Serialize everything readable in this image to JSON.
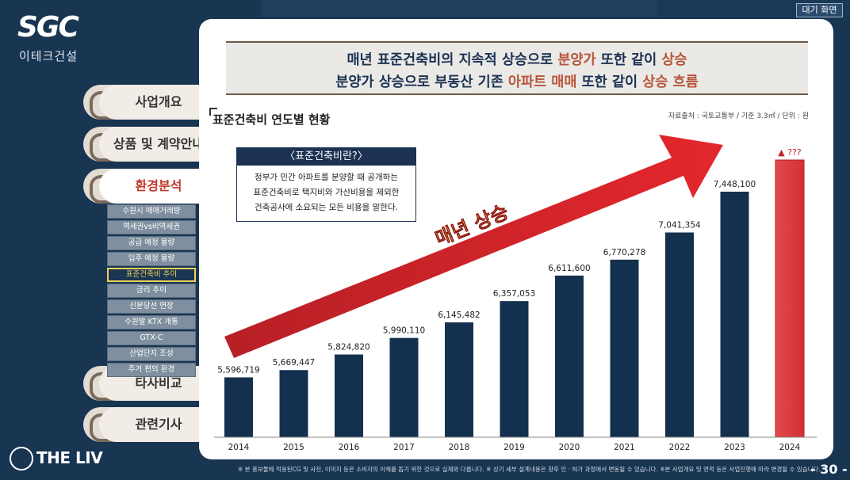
{
  "header": {
    "logo_text": "SGC",
    "logo_sub": "이테크건설",
    "standby_button": "대기 화면"
  },
  "sidebar": {
    "menu": [
      {
        "label": "사업개요"
      },
      {
        "label": "상품 및 계약안내"
      },
      {
        "label": "환경분석",
        "active": true
      },
      {
        "label": "타사비교"
      },
      {
        "label": "관련기사"
      }
    ],
    "submenu": [
      {
        "label": "수원시 매매거래량"
      },
      {
        "label": "역세권vs비역세권"
      },
      {
        "label": "공급 예정 물량"
      },
      {
        "label": "입주 예정 물량"
      },
      {
        "label": "표준건축비 추이",
        "active": true
      },
      {
        "label": "금리 추이"
      },
      {
        "label": "신분당선 연장"
      },
      {
        "label": "수원발 KTX 개통"
      },
      {
        "label": "GTX-C"
      },
      {
        "label": "산업단지 조성"
      },
      {
        "label": "주거 편의 환경"
      }
    ],
    "brand": "THE LIV"
  },
  "headline": {
    "line1_a": "매년 표준건축비의 지속적 상승으로 ",
    "line1_b": "분양가",
    "line1_c": " 또한 같이 ",
    "line1_d": "상승",
    "line2_a": "분양가 상승으로 부동산 기존 ",
    "line2_b": "아파트 매매",
    "line2_c": " 또한 같이 ",
    "line2_d": "상승 흐름"
  },
  "section": {
    "title": "표준건축비 연도별 현황",
    "source": "자료출처 : 국토교통부 / 기준 3.3㎡ / 단위 : 원"
  },
  "definition": {
    "title": "〈표준건축비란?〉",
    "lines": [
      "정부가 민간 아파트를 분양할 때 공개하는",
      "표준건축비로 택지비와 가산비용을 제외한",
      "건축공사에 소요되는 모든 비용을 말한다."
    ]
  },
  "arrow_text": "매년 상승",
  "chart_data": {
    "type": "bar",
    "categories": [
      "2014",
      "2015",
      "2016",
      "2017",
      "2018",
      "2019",
      "2020",
      "2021",
      "2022",
      "2023",
      "2024"
    ],
    "values": [
      5596719,
      5669447,
      5824820,
      5990110,
      6145482,
      6357053,
      6611600,
      6770278,
      7041354,
      7448100,
      null
    ],
    "value_labels": [
      "5,596,719",
      "5,669,447",
      "5,824,820",
      "5,990,110",
      "6,145,482",
      "6,357,053",
      "6,611,600",
      "6,770,278",
      "7,041,354",
      "7,448,100",
      "▲ ???"
    ],
    "colors": {
      "bar": "#14304f",
      "highlight": "#e0393e",
      "highlight_label": "#c0272d"
    }
  },
  "footer": {
    "note": "※ 본 홍보물에 적용된CG 및 사진, 이미지 등은 소비자의 이해를 돕기 위한 것으로 실제와 다릅니다. ※ 상기 세부 설계내용은 향후 인 · 허가 과정에서 변동될 수 있습니다. ※본 사업개요 및 면적 등은 사업진행에 따라 변경될 수 있습니다.",
    "page": "- 30 -"
  }
}
